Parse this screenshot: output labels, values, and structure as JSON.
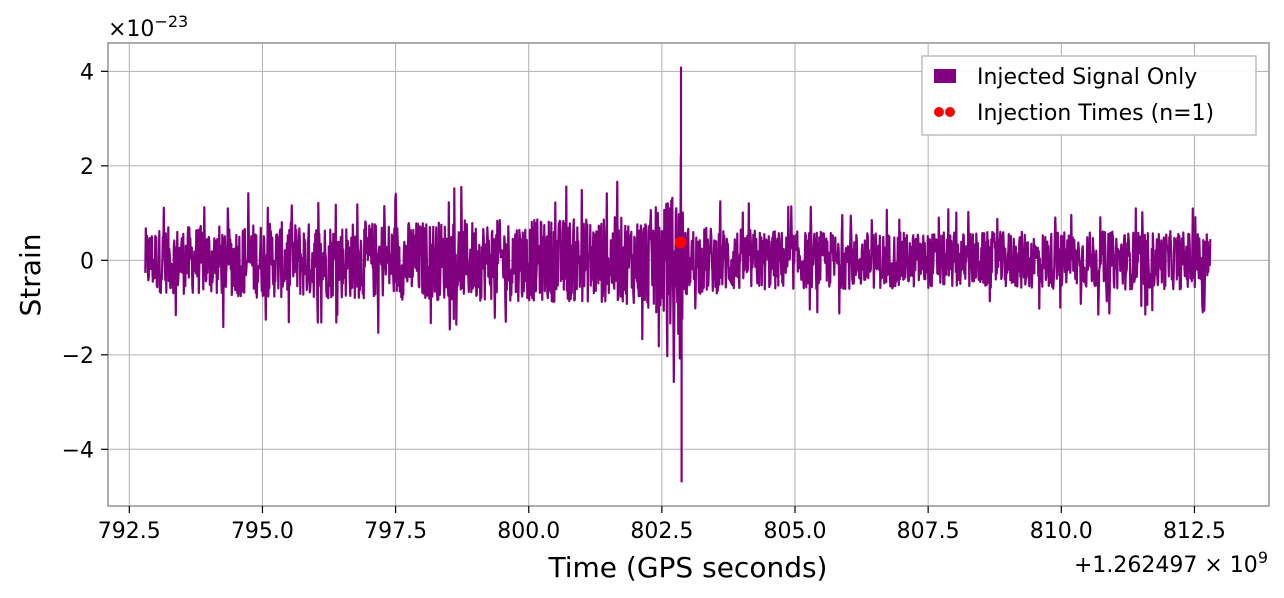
{
  "chart_data": {
    "type": "line",
    "title": "",
    "xlabel": "Time (GPS seconds)",
    "ylabel": "Strain",
    "x_offset_label": "+1.262497 × 10",
    "x_offset_exponent": "9",
    "y_scale_label": "×10",
    "y_scale_exponent": "−23",
    "xlim": [
      792.1,
      813.9
    ],
    "ylim": [
      -5.2,
      4.6
    ],
    "x_ticks": [
      792.5,
      795.0,
      797.5,
      800.0,
      802.5,
      805.0,
      807.5,
      810.0,
      812.5
    ],
    "x_tick_labels": [
      "792.5",
      "795.0",
      "797.5",
      "800.0",
      "802.5",
      "805.0",
      "807.5",
      "810.0",
      "812.5"
    ],
    "y_ticks": [
      -4,
      -2,
      0,
      2,
      4
    ],
    "y_tick_labels": [
      "−4",
      "−2",
      "0",
      "2",
      "4"
    ],
    "grid": true,
    "legend_position": "top-right",
    "series": [
      {
        "name": "Injected Signal Only",
        "kind": "line",
        "color": "#800080",
        "x_range": [
          792.8,
          812.8
        ],
        "envelope": [
          {
            "x": 792.8,
            "amp": 1.1
          },
          {
            "x": 795.0,
            "amp": 1.3
          },
          {
            "x": 797.5,
            "amp": 1.35
          },
          {
            "x": 800.0,
            "amp": 1.4
          },
          {
            "x": 802.0,
            "amp": 1.5
          },
          {
            "x": 802.6,
            "amp": 2.0
          },
          {
            "x": 802.78,
            "amp": 2.6
          },
          {
            "x": 802.86,
            "amp": 4.5
          },
          {
            "x": 802.9,
            "amp": 1.2
          },
          {
            "x": 805.0,
            "amp": 1.0
          },
          {
            "x": 807.5,
            "amp": 0.95
          },
          {
            "x": 810.0,
            "amp": 1.0
          },
          {
            "x": 812.8,
            "amp": 1.0
          }
        ],
        "extremes": [
          {
            "x": 802.86,
            "y": 4.1
          },
          {
            "x": 802.87,
            "y": -4.7
          }
        ]
      },
      {
        "name": "Injection Times (n=1)",
        "kind": "scatter",
        "color": "#ff0000",
        "points": [
          {
            "x": 802.85,
            "y": 0.38
          }
        ]
      }
    ]
  }
}
